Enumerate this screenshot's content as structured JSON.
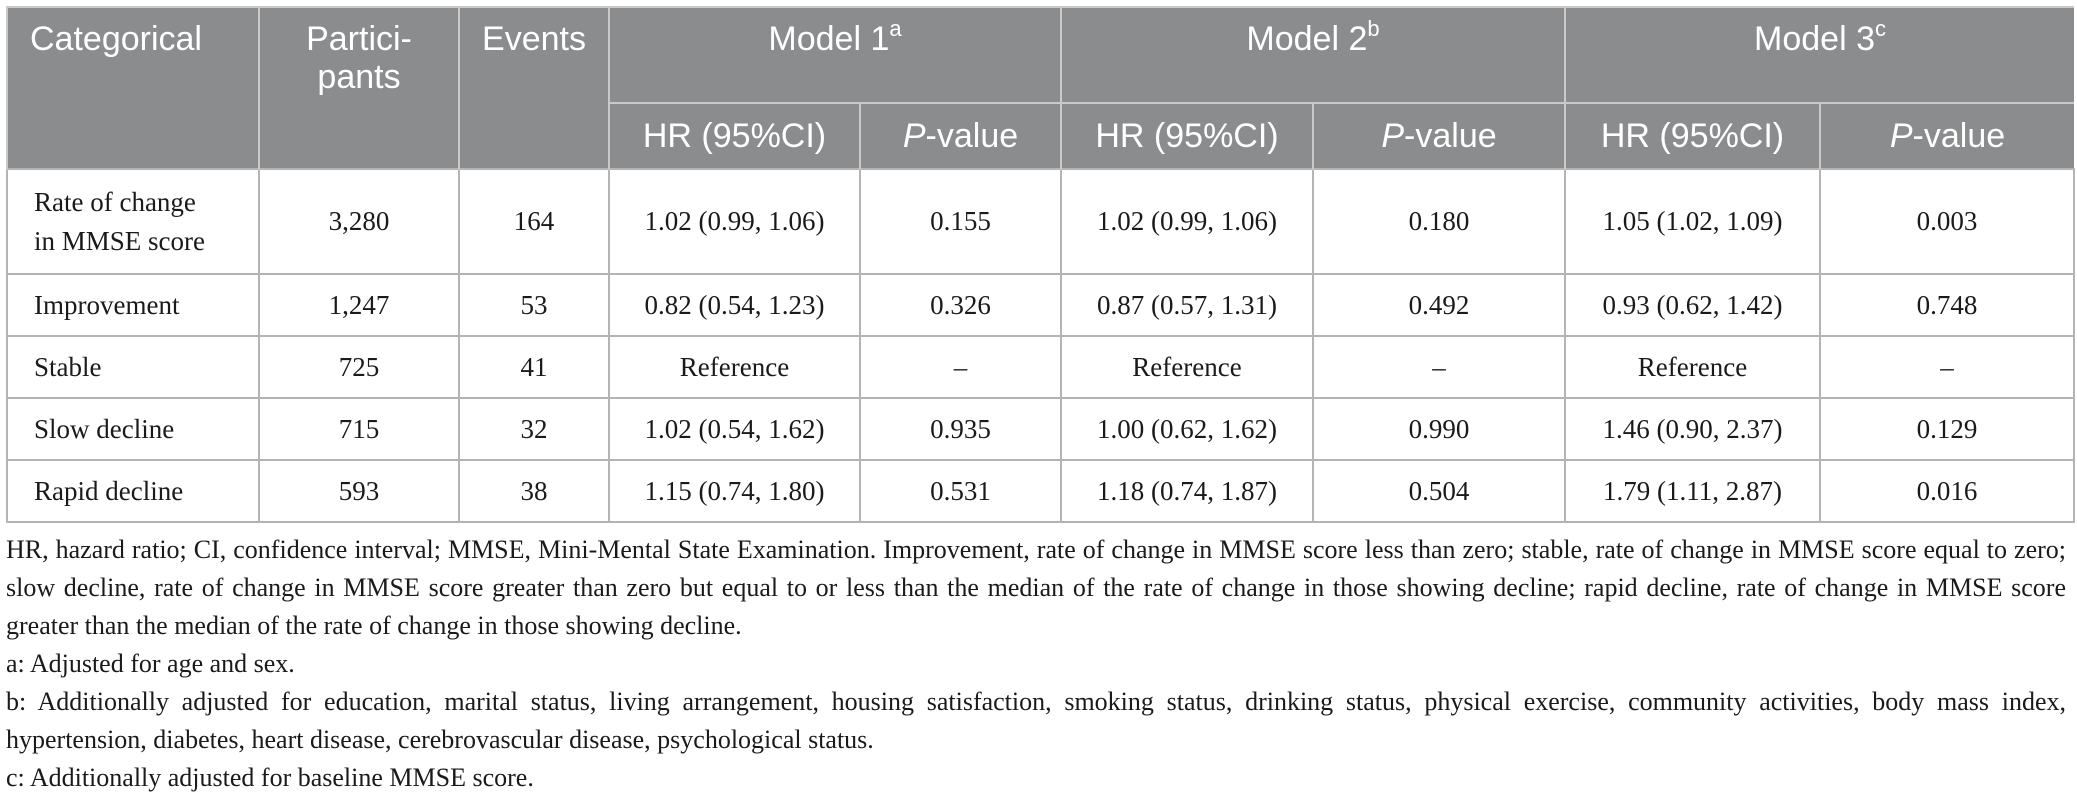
{
  "table": {
    "headers": {
      "categorical": "Categorical",
      "participants_line1": "Partici-",
      "participants_line2": "pants",
      "events": "Events",
      "model1": "Model 1",
      "model1_sup": "a",
      "model2": "Model 2",
      "model2_sup": "b",
      "model3": "Model 3",
      "model3_sup": "c",
      "hr": "HR (95%CI)",
      "p_italic": "P",
      "p_rest": "-value"
    },
    "rows": [
      {
        "cat_line1": "Rate of change",
        "cat_line2": "in MMSE score",
        "participants": "3,280",
        "events": "164",
        "m1_hr": "1.02 (0.99, 1.06)",
        "m1_p": "0.155",
        "m2_hr": "1.02 (0.99, 1.06)",
        "m2_p": "0.180",
        "m3_hr": "1.05 (1.02, 1.09)",
        "m3_p": "0.003"
      },
      {
        "cat": "Improvement",
        "participants": "1,247",
        "events": "53",
        "m1_hr": "0.82 (0.54, 1.23)",
        "m1_p": "0.326",
        "m2_hr": "0.87 (0.57, 1.31)",
        "m2_p": "0.492",
        "m3_hr": "0.93 (0.62, 1.42)",
        "m3_p": "0.748"
      },
      {
        "cat": "Stable",
        "participants": "725",
        "events": "41",
        "m1_hr": "Reference",
        "m1_p": "–",
        "m2_hr": "Reference",
        "m2_p": "–",
        "m3_hr": "Reference",
        "m3_p": "–"
      },
      {
        "cat": "Slow decline",
        "participants": "715",
        "events": "32",
        "m1_hr": "1.02 (0.54, 1.62)",
        "m1_p": "0.935",
        "m2_hr": "1.00 (0.62, 1.62)",
        "m2_p": "0.990",
        "m3_hr": "1.46 (0.90, 2.37)",
        "m3_p": "0.129"
      },
      {
        "cat": "Rapid decline",
        "participants": "593",
        "events": "38",
        "m1_hr": "1.15 (0.74, 1.80)",
        "m1_p": "0.531",
        "m2_hr": "1.18 (0.74, 1.87)",
        "m2_p": "0.504",
        "m3_hr": "1.79 (1.11, 2.87)",
        "m3_p": "0.016"
      }
    ]
  },
  "footnotes": {
    "abbrev": "HR, hazard ratio; CI, confidence interval; MMSE, Mini-Mental State Examination. Improvement, rate of change in MMSE score less than zero; stable, rate of change in MMSE score equal to zero; slow decline, rate of change in MMSE score greater than zero but equal to or less than the median of the rate of change in those showing decline; rapid decline, rate of change in MMSE score greater than the median of the rate of change in those showing decline.",
    "a": "a: Adjusted for age and sex.",
    "b": "b: Additionally adjusted for education, marital status, living arrangement, housing satisfaction, smoking status, drinking status, physical exercise, community activities, body mass index, hypertension, diabetes, heart disease, cerebrovascular disease, psychological status.",
    "c": "c: Additionally adjusted for baseline MMSE score."
  }
}
